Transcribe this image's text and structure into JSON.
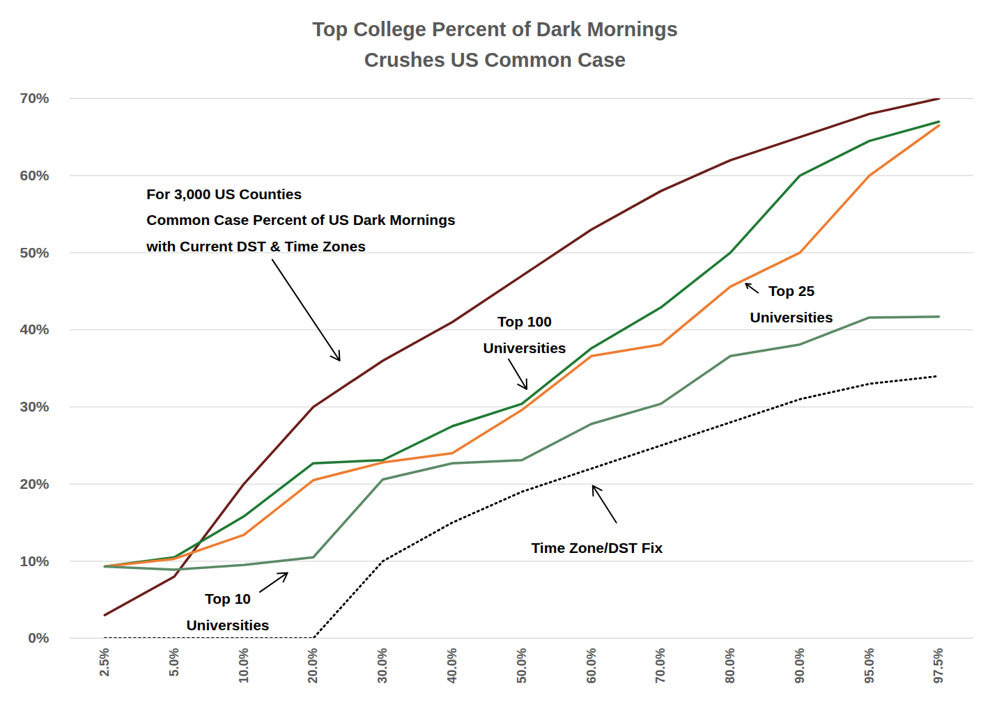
{
  "chart_data": {
    "type": "line",
    "title": "Top College Percent of Dark Mornings\nCrushes US Common Case",
    "categories": [
      "2.5%",
      "5.0%",
      "10.0%",
      "20.0%",
      "30.0%",
      "40.0%",
      "50.0%",
      "60.0%",
      "70.0%",
      "80.0%",
      "90.0%",
      "95.0%",
      "97.5%"
    ],
    "series": [
      {
        "name": "For 3,000 US Counties\nCommon Case Percent of US Dark Mornings\nwith Current DST & Time Zones",
        "color": "#6B1E1A",
        "line_style": "solid",
        "values": [
          3,
          8,
          20,
          30,
          36,
          41,
          47,
          53,
          58,
          62,
          65,
          68,
          70
        ]
      },
      {
        "name": "Top 100\nUniversities",
        "color": "#1F7A34",
        "line_style": "solid",
        "values": [
          9.3,
          10.5,
          15.8,
          22.7,
          23.1,
          27.5,
          30.4,
          37.6,
          42.9,
          50,
          60,
          64.5,
          67
        ]
      },
      {
        "name": "Top 25\nUniversities",
        "color": "#ED7D31",
        "line_style": "solid",
        "values": [
          9.3,
          10.3,
          13.4,
          20.5,
          22.8,
          24,
          29.6,
          36.6,
          38.1,
          45.6,
          50,
          60,
          66.5
        ]
      },
      {
        "name": "Top 10\nUniversities",
        "color": "#5B8A66",
        "line_style": "solid",
        "values": [
          9.3,
          8.9,
          9.5,
          10.5,
          20.6,
          22.7,
          23.1,
          27.8,
          30.4,
          36.6,
          38.1,
          41.6,
          41.7
        ]
      },
      {
        "name": "Time Zone/DST Fix",
        "color": "#000000",
        "line_style": "dotted",
        "values": [
          0,
          0,
          0,
          0,
          10,
          15,
          19,
          22,
          25,
          28,
          31,
          33,
          34
        ]
      }
    ],
    "ylim": [
      0,
      70
    ],
    "yticks": [
      {
        "value": 0,
        "label": "0%"
      },
      {
        "value": 10,
        "label": "10%"
      },
      {
        "value": 20,
        "label": "20%"
      },
      {
        "value": 30,
        "label": "30%"
      },
      {
        "value": 40,
        "label": "40%"
      },
      {
        "value": 50,
        "label": "50%"
      },
      {
        "value": 60,
        "label": "60%"
      },
      {
        "value": 70,
        "label": "70%"
      }
    ],
    "grid": true
  }
}
